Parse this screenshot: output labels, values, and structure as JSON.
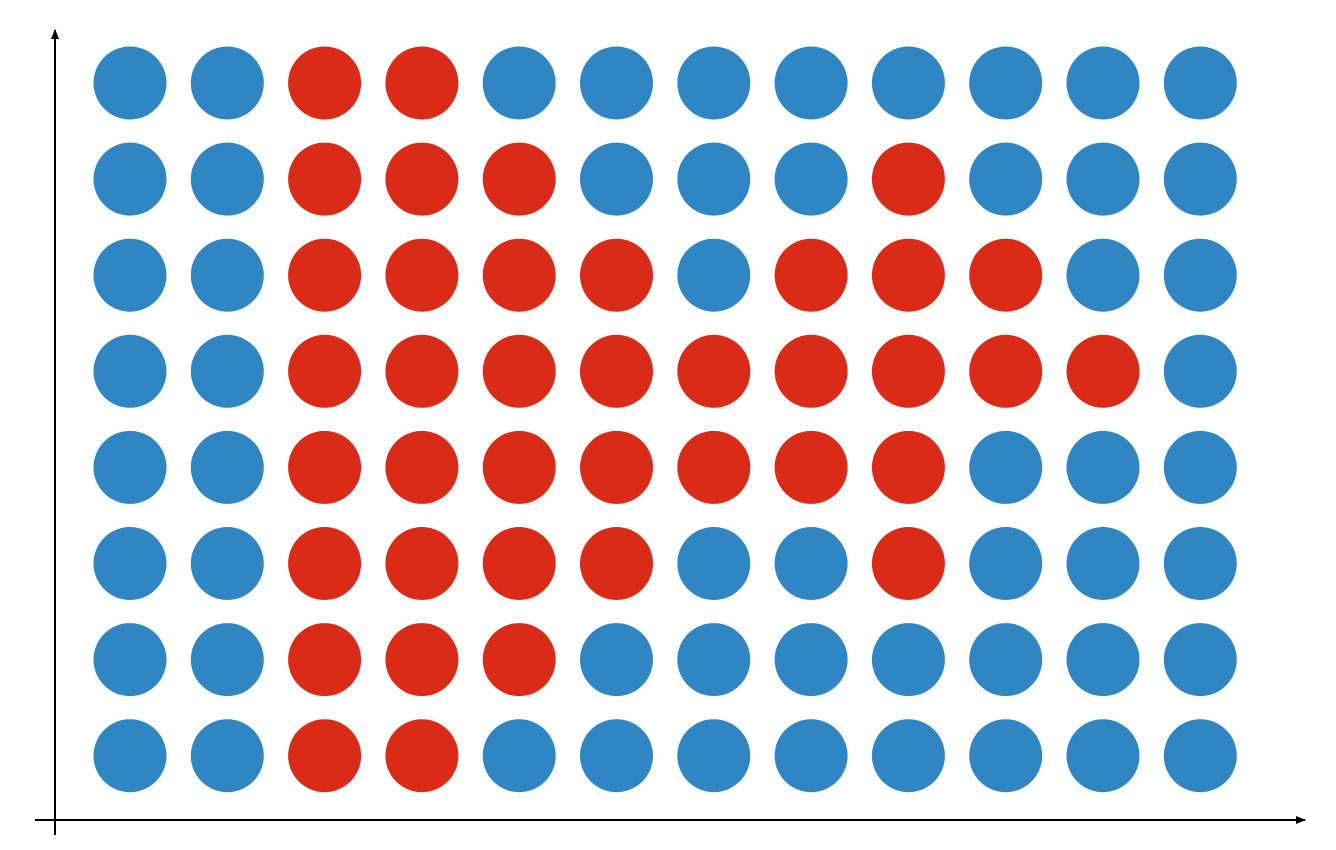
{
  "chart_data": {
    "type": "scatter",
    "title": "",
    "xlabel": "",
    "ylabel": "",
    "grid": false,
    "legend": "none",
    "rows_top_to_bottom": [
      [
        "blue",
        "blue",
        "red",
        "red",
        "blue",
        "blue",
        "blue",
        "blue",
        "blue",
        "blue",
        "blue",
        "blue"
      ],
      [
        "blue",
        "blue",
        "red",
        "red",
        "red",
        "blue",
        "blue",
        "blue",
        "red",
        "blue",
        "blue",
        "blue"
      ],
      [
        "blue",
        "blue",
        "red",
        "red",
        "red",
        "red",
        "blue",
        "red",
        "red",
        "red",
        "blue",
        "blue"
      ],
      [
        "blue",
        "blue",
        "red",
        "red",
        "red",
        "red",
        "red",
        "red",
        "red",
        "red",
        "red",
        "blue"
      ],
      [
        "blue",
        "blue",
        "red",
        "red",
        "red",
        "red",
        "red",
        "red",
        "red",
        "blue",
        "blue",
        "blue"
      ],
      [
        "blue",
        "blue",
        "red",
        "red",
        "red",
        "red",
        "blue",
        "blue",
        "red",
        "blue",
        "blue",
        "blue"
      ],
      [
        "blue",
        "blue",
        "red",
        "red",
        "red",
        "blue",
        "blue",
        "blue",
        "blue",
        "blue",
        "blue",
        "blue"
      ],
      [
        "blue",
        "blue",
        "red",
        "red",
        "blue",
        "blue",
        "blue",
        "blue",
        "blue",
        "blue",
        "blue",
        "blue"
      ]
    ]
  },
  "colors": {
    "blue": "#2f86c3",
    "red": "#d92b17",
    "axis": "#000000"
  }
}
